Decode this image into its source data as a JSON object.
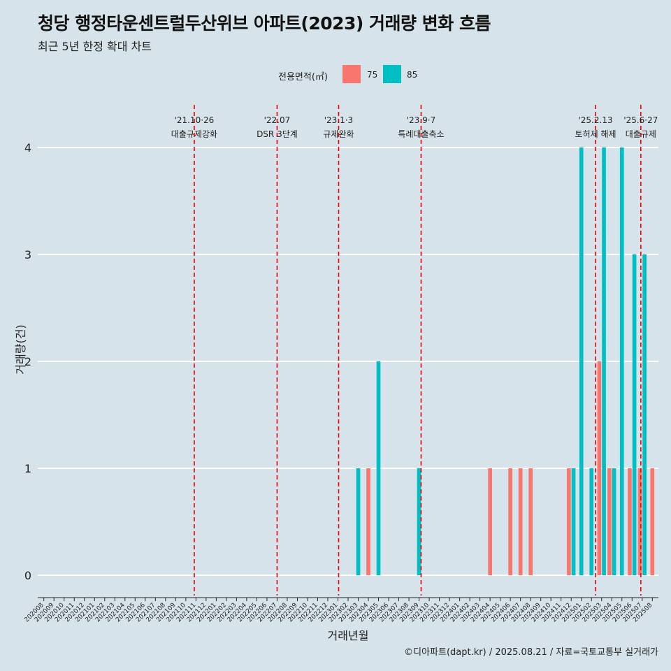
{
  "title": "청당 행정타운센트럴두산위브 아파트(2023) 거래량 변화 흐름",
  "subtitle": "최근 5년 한정 확대 차트",
  "footer": "©디아파트(dapt.kr) / 2025.08.21 / 자료=국토교통부 실거래가",
  "colors": {
    "s75": "#f8766d",
    "s85": "#00bfc4",
    "vline": "#ee0000",
    "grid": "#ffffff"
  },
  "chart_data": {
    "type": "bar",
    "xlabel": "거래년월",
    "ylabel": "거래량(건)",
    "ylim": [
      0,
      4
    ],
    "y_ticks": [
      "0",
      "1",
      "2",
      "3",
      "4"
    ],
    "legend": {
      "title": "전용면적(㎡)",
      "position": "top"
    },
    "categories": [
      "202008",
      "202009",
      "202010",
      "202011",
      "202012",
      "202101",
      "202102",
      "202103",
      "202104",
      "202105",
      "202106",
      "202107",
      "202108",
      "202109",
      "202110",
      "202111",
      "202112",
      "202201",
      "202202",
      "202203",
      "202204",
      "202205",
      "202206",
      "202207",
      "202208",
      "202209",
      "202210",
      "202211",
      "202212",
      "202301",
      "202302",
      "202303",
      "202304",
      "202305",
      "202306",
      "202307",
      "202308",
      "202309",
      "202310",
      "202311",
      "202312",
      "202401",
      "202402",
      "202403",
      "202404",
      "202405",
      "202406",
      "202407",
      "202408",
      "202409",
      "202410",
      "202411",
      "202412",
      "202501",
      "202502",
      "202503",
      "202504",
      "202505",
      "202506",
      "202507",
      "202508"
    ],
    "series": [
      {
        "name": "75",
        "color": "#f8766d",
        "values": [
          0,
          0,
          0,
          0,
          0,
          0,
          0,
          0,
          0,
          0,
          0,
          0,
          0,
          0,
          0,
          0,
          0,
          0,
          0,
          0,
          0,
          0,
          0,
          0,
          0,
          0,
          0,
          0,
          0,
          0,
          0,
          0,
          1,
          0,
          0,
          0,
          0,
          0,
          0,
          0,
          0,
          0,
          0,
          0,
          1,
          0,
          1,
          1,
          1,
          0,
          0,
          0,
          1,
          0,
          0,
          2,
          1,
          0,
          1,
          1,
          1
        ]
      },
      {
        "name": "85",
        "color": "#00bfc4",
        "values": [
          0,
          0,
          0,
          0,
          0,
          0,
          0,
          0,
          0,
          0,
          0,
          0,
          0,
          0,
          0,
          0,
          0,
          0,
          0,
          0,
          0,
          0,
          0,
          0,
          0,
          0,
          0,
          0,
          0,
          0,
          0,
          1,
          0,
          2,
          0,
          0,
          0,
          1,
          0,
          0,
          0,
          0,
          0,
          0,
          0,
          0,
          0,
          0,
          0,
          0,
          0,
          0,
          1,
          4,
          1,
          4,
          1,
          4,
          3,
          3,
          0
        ]
      }
    ],
    "events": [
      {
        "date": "2021-10-26",
        "label1": "'21.10·26",
        "label2": "대출규제강화"
      },
      {
        "date": "2022-07-01",
        "label1": "'22.07",
        "label2": "DSR 3단계"
      },
      {
        "date": "2023-01-03",
        "label1": "'23.1·3",
        "label2": "규제완화"
      },
      {
        "date": "2023-09-07",
        "label1": "'23.9·7",
        "label2": "특례대출축소"
      },
      {
        "date": "2025-02-13",
        "label1": "'25.2.13",
        "label2": "토허제 해제"
      },
      {
        "date": "2025-06-27",
        "label1": "'25.6·27",
        "label2": "대출규제"
      }
    ]
  }
}
